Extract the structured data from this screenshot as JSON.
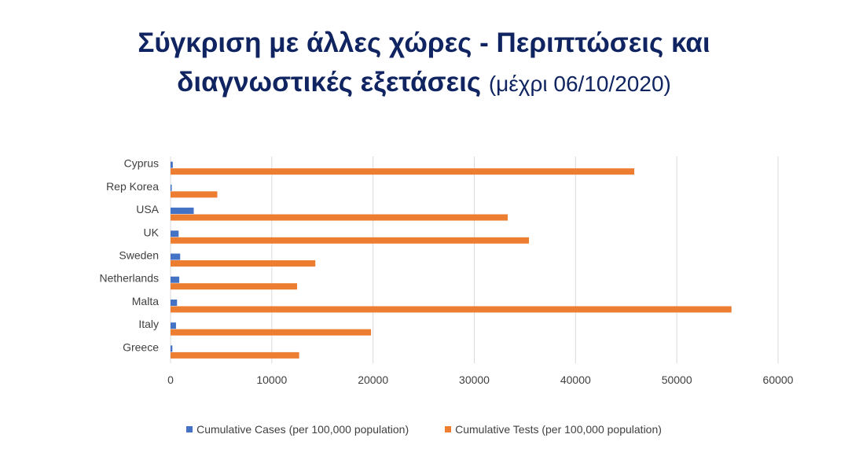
{
  "title_line1": "Σύγκριση με άλλες χώρες - Περιπτώσεις και",
  "title_line2_main": "διαγνωστικές εξετάσεις",
  "title_line2_date": "(μέχρι 06/10/2020)",
  "colors": {
    "cases": "#4472c4",
    "tests": "#ed7d31",
    "grid": "#d9d9d9",
    "text": "#404040"
  },
  "chart_data": {
    "type": "bar",
    "orientation": "horizontal",
    "categories": [
      "Cyprus",
      "Rep Korea",
      "USA",
      "UK",
      "Sweden",
      "Netherlands",
      "Malta",
      "Italy",
      "Greece"
    ],
    "series": [
      {
        "name": "Cumulative Cases (per 100,000 population)",
        "values": [
          220,
          48,
          2290,
          800,
          950,
          860,
          640,
          540,
          180
        ]
      },
      {
        "name": "Cumulative Tests (per 100,000 population)",
        "values": [
          45800,
          4620,
          33300,
          35400,
          14300,
          12500,
          55400,
          19800,
          12700
        ]
      }
    ],
    "xlim": [
      0,
      60000
    ],
    "xticks": [
      0,
      10000,
      20000,
      30000,
      40000,
      50000,
      60000
    ],
    "grid": true,
    "legend": "bottom"
  }
}
